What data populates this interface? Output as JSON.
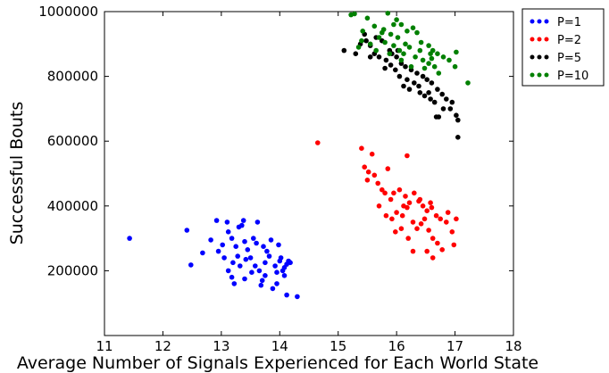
{
  "chart_data": {
    "type": "scatter",
    "title": "",
    "xlabel": "Average Number of Signals Experienced for Each World State",
    "ylabel": "Successful Bouts",
    "xlim": [
      11,
      18
    ],
    "ylim": [
      0,
      1000000
    ],
    "xticks": [
      "11",
      "12",
      "13",
      "14",
      "15",
      "16",
      "17",
      "18"
    ],
    "yticks": [
      "200000",
      "400000",
      "600000",
      "800000",
      "1000000"
    ],
    "legend_position": "outside-top-right",
    "series": [
      {
        "name": "P=1",
        "color": "#0000ff",
        "points": [
          [
            11.43,
            300000
          ],
          [
            12.41,
            325000
          ],
          [
            12.48,
            218000
          ],
          [
            12.68,
            255000
          ],
          [
            12.82,
            295000
          ],
          [
            12.92,
            355000
          ],
          [
            13.1,
            350000
          ],
          [
            13.12,
            320000
          ],
          [
            13.3,
            335000
          ],
          [
            13.35,
            340000
          ],
          [
            13.38,
            355000
          ],
          [
            13.62,
            350000
          ],
          [
            12.95,
            260000
          ],
          [
            13.02,
            280000
          ],
          [
            13.18,
            300000
          ],
          [
            13.25,
            275000
          ],
          [
            13.4,
            290000
          ],
          [
            13.45,
            265000
          ],
          [
            13.55,
            300000
          ],
          [
            13.6,
            285000
          ],
          [
            13.72,
            275000
          ],
          [
            13.78,
            260000
          ],
          [
            13.85,
            295000
          ],
          [
            13.98,
            280000
          ],
          [
            13.05,
            240000
          ],
          [
            13.12,
            200000
          ],
          [
            13.2,
            225000
          ],
          [
            13.28,
            245000
          ],
          [
            13.32,
            215000
          ],
          [
            13.42,
            235000
          ],
          [
            13.5,
            240000
          ],
          [
            13.58,
            215000
          ],
          [
            13.65,
            200000
          ],
          [
            13.75,
            225000
          ],
          [
            13.82,
            245000
          ],
          [
            13.92,
            215000
          ],
          [
            14.0,
            230000
          ],
          [
            14.05,
            200000
          ],
          [
            14.08,
            185000
          ],
          [
            14.12,
            220000
          ],
          [
            14.15,
            230000
          ],
          [
            14.18,
            225000
          ],
          [
            13.18,
            180000
          ],
          [
            13.22,
            160000
          ],
          [
            13.4,
            175000
          ],
          [
            13.52,
            195000
          ],
          [
            13.7,
            170000
          ],
          [
            13.75,
            185000
          ],
          [
            13.95,
            160000
          ],
          [
            14.12,
            125000
          ],
          [
            14.3,
            120000
          ],
          [
            13.88,
            145000
          ],
          [
            13.68,
            155000
          ],
          [
            14.02,
            240000
          ],
          [
            14.08,
            210000
          ],
          [
            13.95,
            195000
          ]
        ]
      },
      {
        "name": "P=2",
        "color": "#ff0000",
        "points": [
          [
            14.65,
            595000
          ],
          [
            15.4,
            578000
          ],
          [
            15.58,
            560000
          ],
          [
            16.18,
            555000
          ],
          [
            15.45,
            520000
          ],
          [
            15.52,
            505000
          ],
          [
            15.85,
            515000
          ],
          [
            15.62,
            495000
          ],
          [
            15.5,
            480000
          ],
          [
            15.68,
            470000
          ],
          [
            15.75,
            450000
          ],
          [
            15.8,
            440000
          ],
          [
            15.9,
            420000
          ],
          [
            15.95,
            440000
          ],
          [
            16.05,
            450000
          ],
          [
            16.15,
            430000
          ],
          [
            16.22,
            410000
          ],
          [
            16.3,
            440000
          ],
          [
            16.38,
            415000
          ],
          [
            16.45,
            400000
          ],
          [
            16.52,
            385000
          ],
          [
            16.6,
            395000
          ],
          [
            16.68,
            370000
          ],
          [
            16.75,
            360000
          ],
          [
            16.85,
            350000
          ],
          [
            16.95,
            320000
          ],
          [
            17.02,
            360000
          ],
          [
            15.7,
            400000
          ],
          [
            15.82,
            370000
          ],
          [
            15.92,
            360000
          ],
          [
            16.0,
            380000
          ],
          [
            16.1,
            370000
          ],
          [
            16.18,
            395000
          ],
          [
            16.28,
            350000
          ],
          [
            16.35,
            330000
          ],
          [
            16.42,
            345000
          ],
          [
            16.55,
            325000
          ],
          [
            16.62,
            300000
          ],
          [
            16.7,
            285000
          ],
          [
            16.78,
            265000
          ],
          [
            16.62,
            240000
          ],
          [
            16.52,
            260000
          ],
          [
            16.98,
            280000
          ],
          [
            16.2,
            300000
          ],
          [
            16.28,
            260000
          ],
          [
            16.08,
            330000
          ],
          [
            15.98,
            320000
          ],
          [
            16.48,
            360000
          ],
          [
            16.58,
            410000
          ],
          [
            16.88,
            380000
          ],
          [
            16.12,
            400000
          ],
          [
            16.4,
            420000
          ]
        ]
      },
      {
        "name": "P=5",
        "color": "#000000",
        "points": [
          [
            15.1,
            880000
          ],
          [
            15.3,
            870000
          ],
          [
            15.38,
            900000
          ],
          [
            15.48,
            910000
          ],
          [
            15.55,
            895000
          ],
          [
            15.62,
            870000
          ],
          [
            15.7,
            860000
          ],
          [
            15.82,
            850000
          ],
          [
            15.92,
            870000
          ],
          [
            16.0,
            860000
          ],
          [
            16.08,
            840000
          ],
          [
            16.15,
            830000
          ],
          [
            16.25,
            820000
          ],
          [
            16.35,
            810000
          ],
          [
            16.45,
            800000
          ],
          [
            16.52,
            790000
          ],
          [
            16.6,
            780000
          ],
          [
            16.7,
            760000
          ],
          [
            16.78,
            745000
          ],
          [
            16.85,
            730000
          ],
          [
            16.95,
            720000
          ],
          [
            17.02,
            680000
          ],
          [
            17.05,
            612000
          ],
          [
            16.92,
            700000
          ],
          [
            15.45,
            930000
          ],
          [
            15.65,
            920000
          ],
          [
            15.75,
            910000
          ],
          [
            15.88,
            880000
          ],
          [
            15.98,
            820000
          ],
          [
            16.05,
            800000
          ],
          [
            16.12,
            770000
          ],
          [
            16.22,
            760000
          ],
          [
            16.3,
            780000
          ],
          [
            16.4,
            750000
          ],
          [
            16.48,
            740000
          ],
          [
            16.58,
            730000
          ],
          [
            16.65,
            720000
          ],
          [
            16.72,
            675000
          ],
          [
            16.8,
            700000
          ],
          [
            17.05,
            665000
          ],
          [
            15.8,
            825000
          ],
          [
            15.9,
            835000
          ],
          [
            16.18,
            790000
          ],
          [
            16.38,
            770000
          ],
          [
            16.55,
            750000
          ],
          [
            16.68,
            675000
          ],
          [
            15.55,
            860000
          ],
          [
            16.02,
            880000
          ]
        ]
      },
      {
        "name": "P=10",
        "color": "#008000",
        "points": [
          [
            15.22,
            990000
          ],
          [
            15.28,
            993000
          ],
          [
            15.85,
            995000
          ],
          [
            16.0,
            975000
          ],
          [
            16.08,
            960000
          ],
          [
            15.5,
            980000
          ],
          [
            15.42,
            940000
          ],
          [
            15.62,
            955000
          ],
          [
            15.78,
            945000
          ],
          [
            15.9,
            930000
          ],
          [
            16.02,
            920000
          ],
          [
            16.18,
            940000
          ],
          [
            16.28,
            950000
          ],
          [
            16.35,
            935000
          ],
          [
            16.42,
            905000
          ],
          [
            16.55,
            895000
          ],
          [
            16.62,
            880000
          ],
          [
            16.7,
            870000
          ],
          [
            16.8,
            860000
          ],
          [
            16.9,
            850000
          ],
          [
            17.02,
            875000
          ],
          [
            17.22,
            780000
          ],
          [
            17.0,
            830000
          ],
          [
            15.4,
            910000
          ],
          [
            15.55,
            900000
          ],
          [
            15.7,
            920000
          ],
          [
            15.8,
            905000
          ],
          [
            15.95,
            895000
          ],
          [
            16.05,
            880000
          ],
          [
            16.12,
            870000
          ],
          [
            16.22,
            890000
          ],
          [
            16.32,
            860000
          ],
          [
            16.45,
            850000
          ],
          [
            16.55,
            840000
          ],
          [
            16.65,
            830000
          ],
          [
            16.72,
            810000
          ],
          [
            15.65,
            880000
          ],
          [
            15.88,
            870000
          ],
          [
            16.08,
            850000
          ],
          [
            16.25,
            830000
          ],
          [
            16.48,
            825000
          ],
          [
            16.58,
            870000
          ],
          [
            15.95,
            960000
          ],
          [
            16.15,
            900000
          ],
          [
            16.4,
            880000
          ],
          [
            15.35,
            890000
          ],
          [
            16.6,
            855000
          ],
          [
            15.75,
            935000
          ]
        ]
      }
    ]
  }
}
